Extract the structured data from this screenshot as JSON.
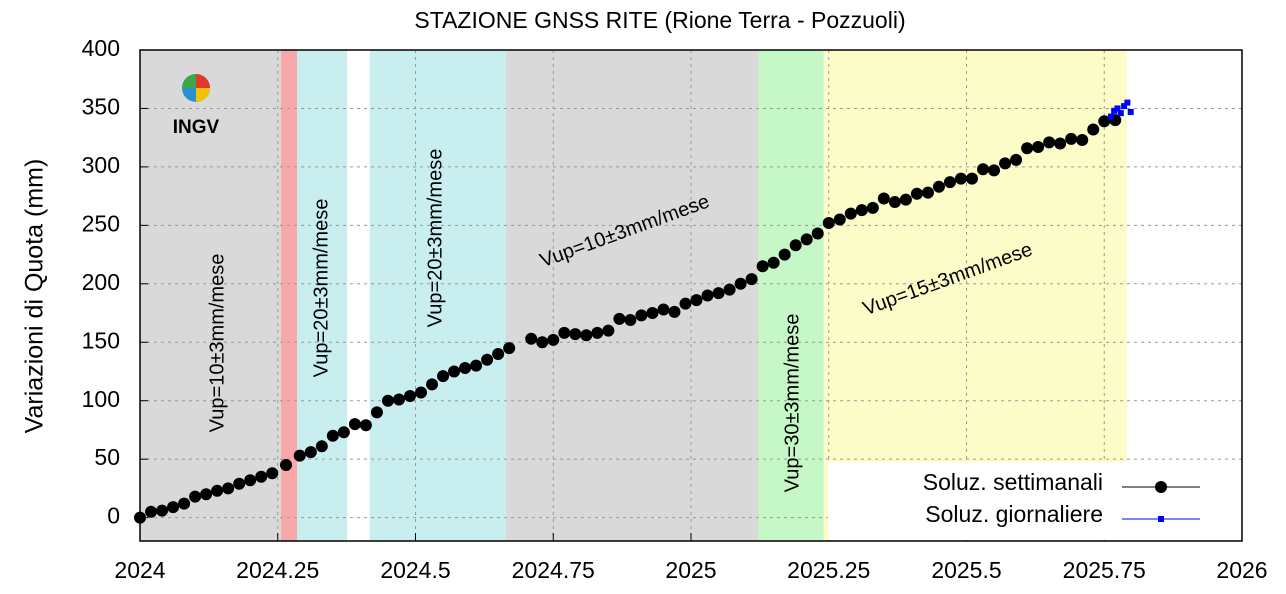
{
  "chart_data": {
    "type": "scatter",
    "title": "STAZIONE GNSS RITE (Rione Terra - Pozzuoli)",
    "y_label": "Variazioni di Quota (mm)",
    "logo_text": "INGV",
    "xlim": [
      2024,
      2026
    ],
    "xticks": [
      2024,
      2024.25,
      2024.5,
      2024.75,
      2025,
      2025.25,
      2025.5,
      2025.75,
      2026
    ],
    "ylim": [
      -20,
      400
    ],
    "yticks": [
      0,
      50,
      100,
      150,
      200,
      250,
      300,
      350,
      400
    ],
    "grid": true,
    "legend": "lower right",
    "regions": [
      {
        "start": 2024,
        "end": 2024.256,
        "color": "#d9d9d9"
      },
      {
        "start": 2024.256,
        "end": 2024.285,
        "color": "#f8a8a8"
      },
      {
        "start": 2024.285,
        "end": 2024.376,
        "color": "#c8eef0"
      },
      {
        "start": 2024.417,
        "end": 2024.664,
        "color": "#c8eef0"
      },
      {
        "start": 2024.664,
        "end": 2025.123,
        "color": "#d9d9d9"
      },
      {
        "start": 2025.123,
        "end": 2025.241,
        "color": "#c6f7c6"
      },
      {
        "start": 2025.241,
        "end": 2025.791,
        "color": "#fcfcc8"
      }
    ],
    "annotations": [
      "Vup=10±3mm/mese",
      "Vup=20±3mm/mese",
      "Vup=20±3mm/mese",
      "Vup=10±3mm/mese",
      "Vup=30±3mm/mese",
      "Vup=15±3mm/mese"
    ],
    "series": [
      {
        "name": "Soluz. settimanali",
        "color": "#000000",
        "x": [
          2024.0,
          2024.02,
          2024.04,
          2024.06,
          2024.08,
          2024.1,
          2024.12,
          2024.14,
          2024.16,
          2024.18,
          2024.2,
          2024.22,
          2024.24,
          2024.265,
          2024.29,
          2024.31,
          2024.33,
          2024.35,
          2024.37,
          2024.39,
          2024.41,
          2024.43,
          2024.45,
          2024.47,
          2024.49,
          2024.51,
          2024.53,
          2024.55,
          2024.57,
          2024.59,
          2024.61,
          2024.63,
          2024.65,
          2024.67,
          2024.71,
          2024.73,
          2024.75,
          2024.77,
          2024.79,
          2024.81,
          2024.83,
          2024.85,
          2024.87,
          2024.89,
          2024.91,
          2024.93,
          2024.95,
          2024.97,
          2024.99,
          2025.01,
          2025.03,
          2025.05,
          2025.07,
          2025.09,
          2025.11,
          2025.13,
          2025.15,
          2025.17,
          2025.19,
          2025.21,
          2025.23,
          2025.25,
          2025.27,
          2025.29,
          2025.31,
          2025.33,
          2025.35,
          2025.37,
          2025.39,
          2025.41,
          2025.43,
          2025.45,
          2025.47,
          2025.49,
          2025.51,
          2025.53,
          2025.55,
          2025.57,
          2025.59,
          2025.61,
          2025.63,
          2025.65,
          2025.67,
          2025.69,
          2025.71,
          2025.73,
          2025.75,
          2025.77
        ],
        "values": [
          0,
          5,
          6,
          9,
          12,
          18,
          20,
          23,
          25,
          29,
          32,
          35,
          38,
          45,
          53,
          56,
          61,
          70,
          73,
          80,
          79,
          90,
          100,
          101,
          104,
          107,
          114,
          121,
          125,
          128,
          130,
          135,
          140,
          145,
          153,
          150,
          152,
          158,
          157,
          156,
          158,
          160,
          170,
          169,
          173,
          175,
          178,
          176,
          183,
          186,
          190,
          192,
          195,
          200,
          204,
          215,
          218,
          225,
          233,
          238,
          243,
          252,
          255,
          260,
          263,
          265,
          273,
          270,
          272,
          277,
          278,
          283,
          287,
          290,
          290,
          298,
          297,
          303,
          306,
          316,
          317,
          321,
          320,
          324,
          323,
          332,
          339,
          340
        ]
      },
      {
        "name": "Soluz. giornaliere",
        "color": "#0000ff",
        "x": [
          2025.762,
          2025.768,
          2025.774,
          2025.78,
          2025.786,
          2025.792,
          2025.798
        ],
        "values": [
          343,
          348,
          350,
          346,
          352,
          355,
          347
        ]
      }
    ]
  }
}
